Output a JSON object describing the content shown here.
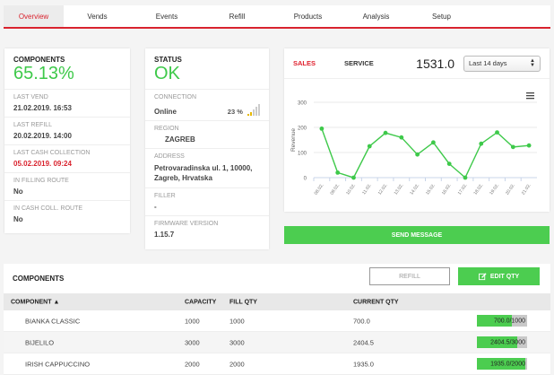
{
  "tabs": [
    "Overview",
    "Vends",
    "Events",
    "Refill",
    "Products",
    "Analysis",
    "Setup"
  ],
  "active_tab": "Overview",
  "components_card": {
    "title": "COMPONENTS",
    "percent": "65.13%",
    "rows": [
      {
        "label": "LAST VEND",
        "value": "21.02.2019. 16:53"
      },
      {
        "label": "LAST REFILL",
        "value": "20.02.2019. 14:00"
      },
      {
        "label": "LAST CASH COLLECTION",
        "value": "05.02.2019. 09:24"
      },
      {
        "label": "IN FILLING ROUTE",
        "value": "No"
      },
      {
        "label": "IN CASH COLL. ROUTE",
        "value": "No"
      }
    ]
  },
  "status_card": {
    "title": "STATUS",
    "status": "OK",
    "connection_label": "CONNECTION",
    "connection_value": "Online",
    "signal_percent": "23 %",
    "region_label": "REGION",
    "region_value": "ZAGREB",
    "address_label": "ADDRESS",
    "address_value": "Petrovaradinska ul. 1, 10000, Zagreb, Hrvatska",
    "filler_label": "FILLER",
    "filler_value": "-",
    "firmware_label": "FIRMWARE VERSION",
    "firmware_value": "1.15.7"
  },
  "chart_panel": {
    "tab_sales": "SALES",
    "tab_service": "SERVICE",
    "total": "1531.0",
    "period_select": "Last 14 days",
    "menu_icon": "hamburger-icon"
  },
  "chart_data": {
    "type": "line",
    "title": "",
    "xlabel": "",
    "ylabel": "Revenue",
    "categories": [
      "08.02.",
      "09.02.",
      "10.02.",
      "11.02.",
      "12.02.",
      "13.02.",
      "14.02.",
      "15.02.",
      "16.02.",
      "17.02.",
      "18.02.",
      "19.02.",
      "20.02.",
      "21.02."
    ],
    "values": [
      195,
      20,
      0,
      125,
      178,
      160,
      92,
      140,
      55,
      0,
      135,
      180,
      122,
      128
    ],
    "ylim": [
      0,
      300
    ],
    "yticks": [
      0,
      100,
      200,
      300
    ],
    "grid": true,
    "color": "#3ec94a"
  },
  "send_message_label": "SEND MESSAGE",
  "components_table": {
    "title": "COMPONENTS",
    "refill_label": "REFILL",
    "edit_qty_label": "EDIT QTY",
    "columns": [
      "COMPONENT ▲",
      "CAPACITY",
      "FILL QTY",
      "CURRENT QTY"
    ],
    "rows": [
      {
        "component": "BIANKA CLASSIC",
        "capacity": "1000",
        "fill_qty": "1000",
        "current_qty": "700.0",
        "bar_label": "700.0/1000",
        "pct": 70
      },
      {
        "component": "BIJELILO",
        "capacity": "3000",
        "fill_qty": "3000",
        "current_qty": "2404.5",
        "bar_label": "2404.5/3000",
        "pct": 80
      },
      {
        "component": "IRISH CAPPUCCINO",
        "capacity": "2000",
        "fill_qty": "2000",
        "current_qty": "1935.0",
        "bar_label": "1935.0/2000",
        "pct": 97
      }
    ]
  },
  "colors": {
    "accent_red": "#d9232e",
    "green": "#4ccd50"
  }
}
